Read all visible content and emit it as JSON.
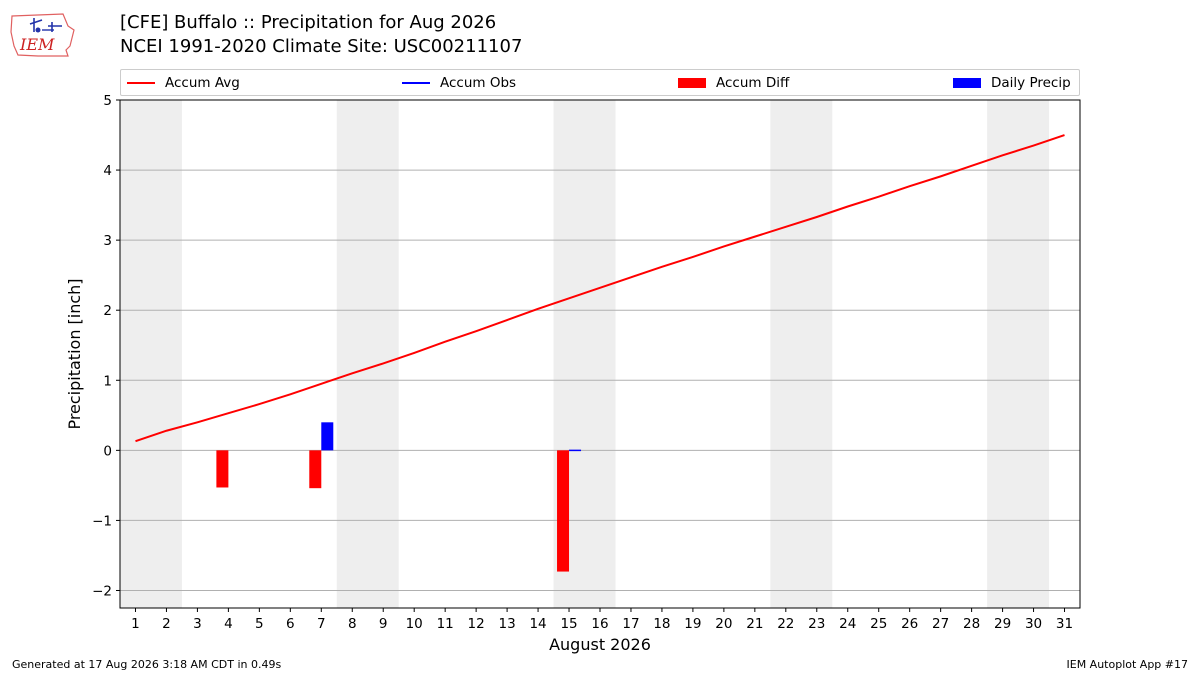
{
  "header": {
    "title_line1": "[CFE] Buffalo :: Precipitation for Aug 2026",
    "title_line2": "NCEI 1991-2020 Climate Site: USC00211107",
    "logo_text": "IEM"
  },
  "footer": {
    "left": "Generated at 17 Aug 2026 3:18 AM CDT in 0.49s",
    "right": "IEM Autoplot App #17"
  },
  "colors": {
    "accum_avg": "#ff0000",
    "accum_obs": "#0000ff",
    "accum_diff": "#ff0000",
    "daily_precip": "#0000ff",
    "weekend_shade": "#eeeeee",
    "grid": "#b0b0b0"
  },
  "chart_data": {
    "type": "bar",
    "xlabel": "August 2026",
    "ylabel": "Precipitation [inch]",
    "ylim": [
      -2.25,
      5
    ],
    "yticks": [
      -2,
      -1,
      0,
      1,
      2,
      3,
      4,
      5
    ],
    "ytick_labels": [
      "−2",
      "−1",
      "0",
      "1",
      "2",
      "3",
      "4",
      "5"
    ],
    "x": [
      1,
      2,
      3,
      4,
      5,
      6,
      7,
      8,
      9,
      10,
      11,
      12,
      13,
      14,
      15,
      16,
      17,
      18,
      19,
      20,
      21,
      22,
      23,
      24,
      25,
      26,
      27,
      28,
      29,
      30,
      31
    ],
    "grid": "horizontal",
    "legend_position": "top",
    "shaded_weekends": [
      [
        1,
        2
      ],
      [
        8,
        9
      ],
      [
        15,
        16
      ],
      [
        22,
        23
      ],
      [
        29,
        30
      ]
    ],
    "legend": [
      {
        "label": "Accum Avg",
        "kind": "line",
        "color": "#ff0000"
      },
      {
        "label": "Accum Obs",
        "kind": "line",
        "color": "#0000ff"
      },
      {
        "label": "Accum Diff",
        "kind": "bar",
        "color": "#ff0000"
      },
      {
        "label": "Daily Precip",
        "kind": "bar",
        "color": "#0000ff"
      }
    ],
    "series": [
      {
        "name": "Accum Avg",
        "type": "line",
        "values": [
          0.13,
          0.28,
          0.4,
          0.53,
          0.66,
          0.8,
          0.95,
          1.1,
          1.24,
          1.39,
          1.55,
          1.7,
          1.86,
          2.02,
          2.17,
          2.32,
          2.47,
          2.62,
          2.76,
          2.91,
          3.05,
          3.19,
          3.33,
          3.48,
          3.62,
          3.77,
          3.91,
          4.06,
          4.21,
          4.35,
          4.5
        ]
      },
      {
        "name": "Accum Diff",
        "type": "bar",
        "points": [
          [
            4,
            -0.53
          ],
          [
            7,
            -0.54
          ],
          [
            15,
            -1.73
          ]
        ]
      },
      {
        "name": "Daily Precip",
        "type": "bar",
        "points": [
          [
            7,
            0.4
          ],
          [
            15,
            0.01
          ]
        ]
      }
    ]
  }
}
